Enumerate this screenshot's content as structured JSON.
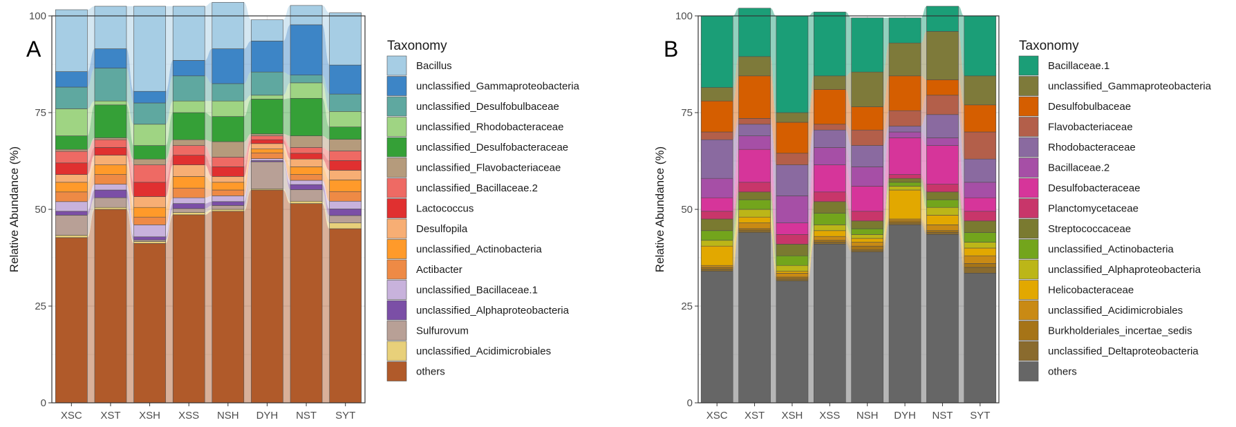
{
  "chart_data": [
    {
      "panel_label": "A",
      "type": "stacked-bar-alluvial",
      "ylabel": "Relative Abundance (%)",
      "xlabel": "",
      "ylim": [
        0,
        100
      ],
      "yticks": [
        "0",
        "25",
        "50",
        "75",
        "100"
      ],
      "categories": [
        "XSC",
        "XST",
        "XSH",
        "XSS",
        "NSH",
        "DYH",
        "NST",
        "SYT"
      ],
      "legend_title": "Taxonomy",
      "series": [
        {
          "name": "others",
          "color": "#B05A2A",
          "values": [
            42.7,
            50.0,
            41.2,
            48.6,
            49.5,
            55.0,
            51.5,
            45.0
          ]
        },
        {
          "name": "unclassified_Acidimicrobiales",
          "color": "#E8D07A",
          "values": [
            0.6,
            0.5,
            0.5,
            0.6,
            0.5,
            0.3,
            0.6,
            1.5
          ]
        },
        {
          "name": "Sulfurovum",
          "color": "#B8A096",
          "values": [
            5.2,
            2.5,
            0.4,
            1.0,
            1.0,
            7.0,
            3.0,
            1.9
          ]
        },
        {
          "name": "unclassified_Alphaproteobacteria",
          "color": "#7B4FA6",
          "values": [
            1.0,
            2.0,
            0.8,
            1.3,
            1.0,
            0.3,
            1.3,
            1.7
          ]
        },
        {
          "name": "unclassified_Bacillaceae.1",
          "color": "#C8B2DC",
          "values": [
            2.5,
            1.5,
            3.1,
            1.5,
            1.5,
            0.5,
            1.1,
            2.0
          ]
        },
        {
          "name": "Actibacter",
          "color": "#EE8A45",
          "values": [
            2.5,
            2.5,
            2.0,
            2.5,
            1.5,
            1.5,
            1.5,
            2.5
          ]
        },
        {
          "name": "unclassified_Actinobacteria",
          "color": "#FF9A2A",
          "values": [
            2.5,
            2.5,
            2.5,
            3.0,
            2.0,
            1.0,
            2.0,
            3.0
          ]
        },
        {
          "name": "Desulfopila",
          "color": "#F7AE74",
          "values": [
            2.0,
            2.5,
            2.8,
            3.0,
            1.5,
            1.4,
            2.0,
            2.5
          ]
        },
        {
          "name": "Lactococcus",
          "color": "#E03030",
          "values": [
            3.0,
            2.0,
            3.7,
            2.5,
            2.5,
            1.0,
            1.5,
            2.5
          ]
        },
        {
          "name": "unclassified_Bacillaceae.2",
          "color": "#EE6A64",
          "values": [
            3.0,
            2.0,
            4.5,
            2.5,
            2.5,
            1.0,
            1.5,
            2.5
          ]
        },
        {
          "name": "unclassified_Flavobacteriaceae",
          "color": "#B59B7C",
          "values": [
            0.5,
            0.5,
            1.5,
            1.5,
            4.0,
            0.5,
            3.0,
            3.0
          ]
        },
        {
          "name": "unclassified_Desulfobacteraceae",
          "color": "#35A037",
          "values": [
            3.5,
            8.5,
            3.5,
            7.0,
            6.5,
            9.0,
            9.7,
            3.2
          ]
        },
        {
          "name": "unclassified_Rhodobacteraceae",
          "color": "#9FD483",
          "values": [
            7.0,
            1.0,
            5.5,
            3.0,
            4.0,
            1.0,
            4.0,
            4.0
          ]
        },
        {
          "name": "unclassified_Desulfobulbaceae",
          "color": "#5FA8A0",
          "values": [
            5.6,
            8.5,
            5.5,
            6.5,
            4.5,
            6.0,
            2.0,
            4.5
          ]
        },
        {
          "name": "unclassified_Gammaproteobacteria",
          "color": "#3D85C6",
          "values": [
            4.0,
            5.0,
            3.0,
            4.0,
            9.0,
            8.0,
            13.0,
            7.5
          ]
        },
        {
          "name": "Bacillus",
          "color": "#A6CDE4",
          "values": [
            16.0,
            11.0,
            22.0,
            14.0,
            12.0,
            5.5,
            5.0,
            13.5
          ]
        }
      ]
    },
    {
      "panel_label": "B",
      "type": "stacked-bar-alluvial",
      "ylabel": "Relative Abundance (%)",
      "xlabel": "",
      "ylim": [
        0,
        100
      ],
      "yticks": [
        "0",
        "25",
        "50",
        "75",
        "100"
      ],
      "categories": [
        "XSC",
        "XST",
        "XSH",
        "XSS",
        "NSH",
        "DYH",
        "NST",
        "SYT"
      ],
      "legend_title": "Taxonomy",
      "series": [
        {
          "name": "others",
          "color": "#666666",
          "values": [
            34.0,
            44.0,
            31.5,
            41.0,
            39.0,
            46.0,
            43.5,
            33.5
          ]
        },
        {
          "name": "unclassified_Deltaproteobacteria",
          "color": "#8A6B2E",
          "values": [
            0.5,
            0.5,
            0.5,
            0.5,
            0.5,
            0.5,
            0.5,
            1.5
          ]
        },
        {
          "name": "Burkholderiales_incertae_sedis",
          "color": "#A67417",
          "values": [
            0.5,
            0.5,
            0.5,
            0.5,
            1.0,
            0.5,
            0.5,
            1.0
          ]
        },
        {
          "name": "unclassified_Acidimicrobiales",
          "color": "#C98A14",
          "values": [
            0.5,
            1.5,
            1.0,
            1.0,
            1.0,
            0.5,
            1.5,
            2.0
          ]
        },
        {
          "name": "Helicobacteraceae",
          "color": "#E2A800",
          "values": [
            5.0,
            1.5,
            0.5,
            1.5,
            1.0,
            7.5,
            2.5,
            2.0
          ]
        },
        {
          "name": "unclassified_Alphaproteobacteria",
          "color": "#BCB618",
          "values": [
            1.5,
            2.0,
            1.5,
            1.5,
            1.0,
            1.0,
            2.0,
            1.5
          ]
        },
        {
          "name": "unclassified_Actinobacteria",
          "color": "#73A51C",
          "values": [
            2.5,
            2.5,
            2.5,
            3.0,
            1.5,
            1.0,
            2.0,
            2.5
          ]
        },
        {
          "name": "Streptococcaceae",
          "color": "#7A7A30",
          "values": [
            3.0,
            2.0,
            3.0,
            3.0,
            2.0,
            1.0,
            2.0,
            3.0
          ]
        },
        {
          "name": "Planctomycetaceae",
          "color": "#C8366A",
          "values": [
            2.0,
            2.5,
            2.5,
            2.5,
            2.5,
            1.0,
            2.0,
            2.5
          ]
        },
        {
          "name": "Desulfobacteraceae",
          "color": "#D6359A",
          "values": [
            3.5,
            8.5,
            3.0,
            7.0,
            6.5,
            9.5,
            10.0,
            3.5
          ]
        },
        {
          "name": "Bacillaceae.2",
          "color": "#A64FA6",
          "values": [
            5.0,
            3.5,
            7.0,
            4.5,
            5.0,
            1.5,
            2.0,
            4.0
          ]
        },
        {
          "name": "Rhodobacteraceae",
          "color": "#8A6AA0",
          "values": [
            10.0,
            3.0,
            8.0,
            4.5,
            5.5,
            1.5,
            6.0,
            6.0
          ]
        },
        {
          "name": "Flavobacteriaceae",
          "color": "#B35F4A",
          "values": [
            2.0,
            1.5,
            3.0,
            1.5,
            4.0,
            4.0,
            5.0,
            7.0
          ]
        },
        {
          "name": "Desulfobulbaceae",
          "color": "#D55E00",
          "values": [
            8.0,
            11.0,
            8.0,
            9.0,
            6.0,
            9.0,
            4.0,
            7.0
          ]
        },
        {
          "name": "unclassified_Gammaproteobacteria",
          "color": "#7E7A3A",
          "values": [
            3.5,
            5.0,
            2.5,
            3.5,
            9.0,
            8.5,
            12.5,
            7.5
          ]
        },
        {
          "name": "Bacillaceae.1",
          "color": "#1B9E77",
          "values": [
            18.5,
            12.5,
            25.0,
            16.5,
            14.0,
            6.5,
            6.5,
            15.5
          ]
        }
      ]
    }
  ]
}
